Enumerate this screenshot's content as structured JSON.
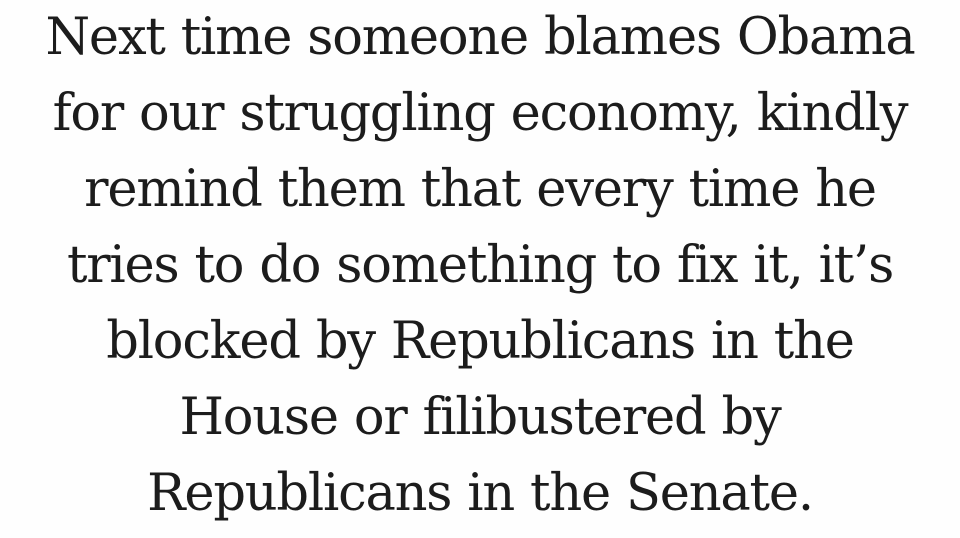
{
  "quote": {
    "lines": [
      "Next time someone blames Obama",
      "for our struggling economy, kindly",
      "remind them that every time he",
      "tries to do something to fix it, it’s",
      "blocked by Republicans in the",
      "House or filibustered by",
      "Republicans in the Senate."
    ]
  },
  "colors": {
    "background": "#fefefe",
    "text": "#1c1c1c"
  }
}
